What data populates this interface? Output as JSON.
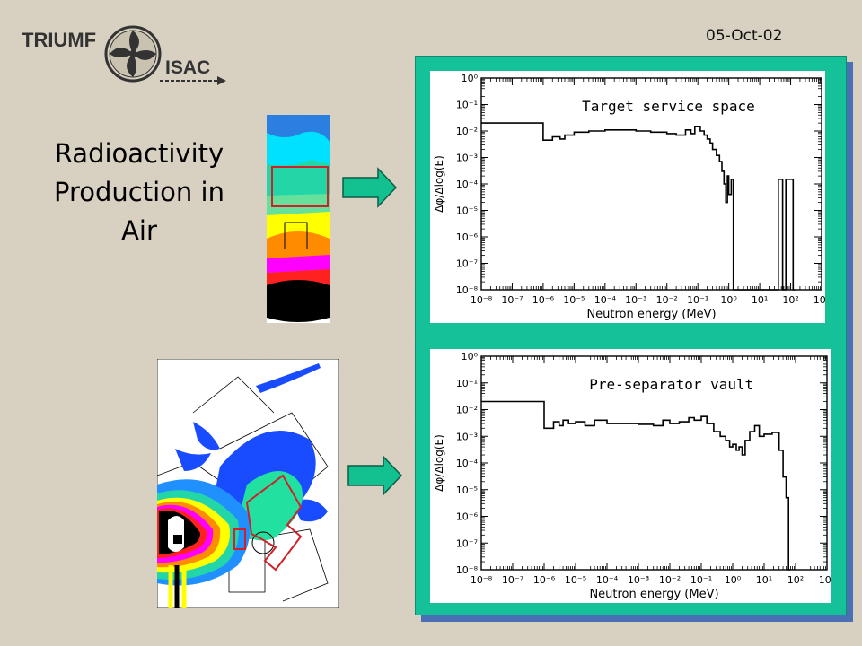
{
  "header": {
    "date": "05-Oct-02",
    "logo_text_1": "TRIUMF",
    "logo_text_2": "ISAC"
  },
  "slide": {
    "title_lines": [
      "Radioactivity",
      "Production in",
      "Air"
    ]
  },
  "colors": {
    "background": "#d9d2c2",
    "panel": "#15c199",
    "panel_shadow": "#4a6fb5",
    "arrow": "#13c08f",
    "highlight_box": "#d0202a"
  },
  "chart_data": [
    {
      "type": "line",
      "title": "Target service space",
      "xlabel": "Neutron energy (MeV)",
      "ylabel": "Δφ/Δlog(E)",
      "x_scale": "log",
      "y_scale": "log",
      "xlim": [
        1e-08,
        1000
      ],
      "ylim": [
        1e-08,
        1
      ],
      "x_tick_exponents": [
        -8,
        -7,
        -6,
        -5,
        -4,
        -3,
        -2,
        -1,
        0,
        1,
        2,
        3
      ],
      "y_tick_exponents": [
        0,
        -1,
        -2,
        -3,
        -4,
        -5,
        -6,
        -7,
        -8
      ],
      "x_tick_labels": [
        "10⁻⁸",
        "10⁻⁷",
        "10⁻⁶",
        "10⁻⁵",
        "10⁻⁴",
        "10⁻³",
        "10⁻²",
        "10⁻¹",
        "10⁰",
        "10¹",
        "10²",
        "10³"
      ],
      "y_tick_labels": [
        "10⁰",
        "10⁻¹",
        "10⁻²",
        "10⁻³",
        "10⁻⁴",
        "10⁻⁵",
        "10⁻⁶",
        "10⁻⁷",
        "10⁻⁸"
      ],
      "steps": [
        [
          1e-08,
          0.02
        ],
        [
          1e-06,
          0.0045
        ],
        [
          2e-06,
          0.006
        ],
        [
          3.5e-06,
          0.005
        ],
        [
          5e-06,
          0.007
        ],
        [
          1e-05,
          0.009
        ],
        [
          3e-05,
          0.01
        ],
        [
          0.0001,
          0.011
        ],
        [
          0.0003,
          0.011
        ],
        [
          0.001,
          0.01
        ],
        [
          0.003,
          0.009
        ],
        [
          0.01,
          0.008
        ],
        [
          0.02,
          0.007
        ],
        [
          0.04,
          0.011
        ],
        [
          0.06,
          0.008
        ],
        [
          0.08,
          0.015
        ],
        [
          0.12,
          0.01
        ],
        [
          0.16,
          0.007
        ],
        [
          0.2,
          0.005
        ],
        [
          0.25,
          0.0035
        ],
        [
          0.3,
          0.002
        ],
        [
          0.4,
          0.0012
        ],
        [
          0.5,
          0.0007
        ],
        [
          0.6,
          0.0003
        ],
        [
          0.7,
          0.0001
        ],
        [
          0.8,
          2e-05
        ],
        [
          0.9,
          0.0002
        ],
        [
          1.0,
          4e-05
        ],
        [
          1.2,
          0.00015
        ],
        [
          1.4,
          1e-08
        ],
        [
          40,
          0.00015
        ],
        [
          55,
          1e-08
        ],
        [
          70,
          0.00015
        ],
        [
          95,
          0.00015
        ],
        [
          120,
          1e-08
        ]
      ]
    },
    {
      "type": "line",
      "title": "Pre-separator vault",
      "xlabel": "Neutron energy (MeV)",
      "ylabel": "Δφ/Δlog(E)",
      "x_scale": "log",
      "y_scale": "log",
      "xlim": [
        1e-08,
        1000
      ],
      "ylim": [
        1e-08,
        1
      ],
      "x_tick_exponents": [
        -8,
        -7,
        -6,
        -5,
        -4,
        -3,
        -2,
        -1,
        0,
        1,
        2,
        3
      ],
      "y_tick_exponents": [
        0,
        -1,
        -2,
        -3,
        -4,
        -5,
        -6,
        -7,
        -8
      ],
      "x_tick_labels": [
        "10⁻⁸",
        "10⁻⁷",
        "10⁻⁶",
        "10⁻⁵",
        "10⁻⁴",
        "10⁻³",
        "10⁻²",
        "10⁻¹",
        "10⁰",
        "10¹",
        "10²",
        "10³"
      ],
      "y_tick_labels": [
        "10⁰",
        "10⁻¹",
        "10⁻²",
        "10⁻³",
        "10⁻⁴",
        "10⁻⁵",
        "10⁻⁶",
        "10⁻⁷",
        "10⁻⁸"
      ],
      "steps": [
        [
          1e-08,
          0.02
        ],
        [
          1e-06,
          0.002
        ],
        [
          2e-06,
          0.0035
        ],
        [
          3e-06,
          0.0025
        ],
        [
          4e-06,
          0.004
        ],
        [
          6e-06,
          0.003
        ],
        [
          1e-05,
          0.0035
        ],
        [
          2e-05,
          0.0025
        ],
        [
          4e-05,
          0.004
        ],
        [
          0.0001,
          0.003
        ],
        [
          0.0003,
          0.003
        ],
        [
          0.001,
          0.0028
        ],
        [
          0.003,
          0.0025
        ],
        [
          0.006,
          0.004
        ],
        [
          0.01,
          0.003
        ],
        [
          0.02,
          0.0035
        ],
        [
          0.04,
          0.005
        ],
        [
          0.06,
          0.004
        ],
        [
          0.1,
          0.0055
        ],
        [
          0.15,
          0.003
        ],
        [
          0.25,
          0.0015
        ],
        [
          0.4,
          0.001
        ],
        [
          0.6,
          0.0007
        ],
        [
          0.8,
          0.0004
        ],
        [
          1.0,
          0.0005
        ],
        [
          1.3,
          0.0003
        ],
        [
          1.6,
          0.0004
        ],
        [
          2.0,
          0.0002
        ],
        [
          2.5,
          0.0007
        ],
        [
          3.5,
          0.0015
        ],
        [
          5,
          0.0025
        ],
        [
          7,
          0.001
        ],
        [
          10,
          0.0012
        ],
        [
          18,
          0.0014
        ],
        [
          30,
          0.0003
        ],
        [
          40,
          3e-05
        ],
        [
          50,
          5e-06
        ],
        [
          60,
          1e-08
        ]
      ]
    }
  ]
}
